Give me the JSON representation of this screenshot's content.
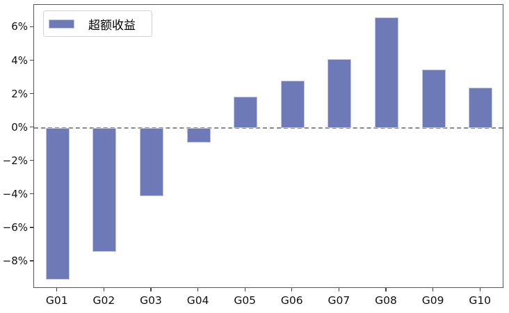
{
  "chart_data": {
    "type": "bar",
    "title": "",
    "xlabel": "",
    "ylabel": "",
    "unit": "%",
    "categories": [
      "G01",
      "G02",
      "G03",
      "G04",
      "G05",
      "G06",
      "G07",
      "G08",
      "G09",
      "G10"
    ],
    "series": [
      {
        "name": "超额收益",
        "values": [
          -9.1,
          -7.4,
          -4.1,
          -0.9,
          1.85,
          2.8,
          4.1,
          6.6,
          3.5,
          2.4
        ]
      }
    ],
    "ylim": [
      -9.62,
      7.35
    ],
    "y_ticks": [
      6,
      4,
      2,
      0,
      -2,
      -4,
      -6,
      -8
    ],
    "y_tick_labels": [
      "6%",
      "4%",
      "2%",
      "0%",
      "−2%",
      "−4%",
      "−6%",
      "−8%"
    ],
    "grid": false,
    "legend": {
      "label": "超额收益",
      "position": "upper-left"
    },
    "zero_line": {
      "style": "dashed",
      "color": "#8a8a8a"
    },
    "colors": {
      "bar_fill": "#6e79b7",
      "bar_edge": "#c0c5e2",
      "spine": "#555555",
      "tick_text": "#111111"
    }
  }
}
